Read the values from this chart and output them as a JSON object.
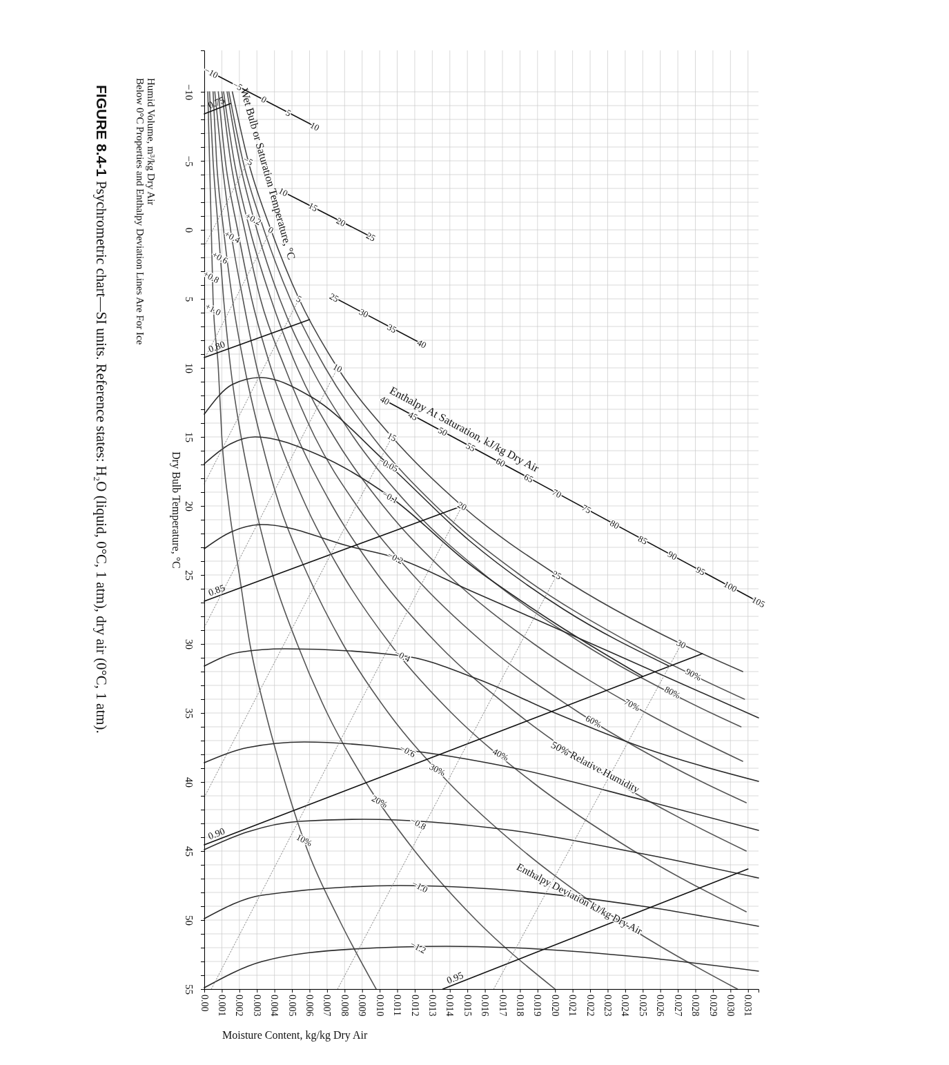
{
  "chart_data": {
    "type": "line",
    "title": "FIGURE 8.4-1",
    "subtitle": "Psychrometric chart—SI units. Reference states: H₂O (liquid, 0°C, 1 atm), dry air (0°C, 1 atm).",
    "xlabel": "Moisture Content, kg/kg Dry Air",
    "ylabel": "Dry Bulb Temperature, °C",
    "xlim": [
      0,
      0.0316
    ],
    "ylim": [
      55,
      -13
    ],
    "xticks": [
      {
        "value": 0,
        "label": "0.00"
      },
      0.001,
      0.002,
      0.003,
      0.004,
      0.005,
      0.006,
      0.007,
      0.008,
      0.009,
      {
        "value": 0.01,
        "label": "0.010"
      },
      0.011,
      0.012,
      0.013,
      0.014,
      0.015,
      0.016,
      0.017,
      0.018,
      0.019,
      {
        "value": 0.02,
        "label": "0.020"
      },
      0.021,
      0.022,
      0.023,
      0.024,
      0.025,
      0.026,
      0.027,
      0.028,
      0.029,
      {
        "value": 0.03,
        "label": "0.030"
      },
      0.031
    ],
    "yticks": [
      {
        "value": -10,
        "label": "−10"
      },
      {
        "value": -9,
        "label": null
      },
      {
        "value": -8,
        "label": null
      },
      {
        "value": -7,
        "label": null
      },
      {
        "value": -6,
        "label": null
      },
      {
        "value": -5,
        "label": "−5"
      },
      {
        "value": -4,
        "label": null
      },
      {
        "value": -3,
        "label": null
      },
      {
        "value": -2,
        "label": null
      },
      {
        "value": -1,
        "label": null
      },
      0,
      {
        "value": 1,
        "label": null
      },
      {
        "value": 2,
        "label": null
      },
      {
        "value": 3,
        "label": null
      },
      {
        "value": 4,
        "label": null
      },
      5,
      {
        "value": 6,
        "label": null
      },
      {
        "value": 7,
        "label": null
      },
      {
        "value": 8,
        "label": null
      },
      {
        "value": 9,
        "label": null
      },
      10,
      {
        "value": 11,
        "label": null
      },
      {
        "value": 12,
        "label": null
      },
      {
        "value": 13,
        "label": null
      },
      {
        "value": 14,
        "label": null
      },
      15,
      {
        "value": 16,
        "label": null
      },
      {
        "value": 17,
        "label": null
      },
      {
        "value": 18,
        "label": null
      },
      {
        "value": 19,
        "label": null
      },
      20,
      {
        "value": 21,
        "label": null
      },
      {
        "value": 22,
        "label": null
      },
      {
        "value": 23,
        "label": null
      },
      {
        "value": 24,
        "label": null
      },
      25,
      {
        "value": 26,
        "label": null
      },
      {
        "value": 27,
        "label": null
      },
      {
        "value": 28,
        "label": null
      },
      {
        "value": 29,
        "label": null
      },
      30,
      {
        "value": 31,
        "label": null
      },
      {
        "value": 32,
        "label": null
      },
      {
        "value": 33,
        "label": null
      },
      {
        "value": 34,
        "label": null
      },
      35,
      {
        "value": 36,
        "label": null
      },
      {
        "value": 37,
        "label": null
      },
      {
        "value": 38,
        "label": null
      },
      {
        "value": 39,
        "label": null
      },
      40,
      {
        "value": 41,
        "label": null
      },
      {
        "value": 42,
        "label": null
      },
      {
        "value": 43,
        "label": null
      },
      {
        "value": 44,
        "label": null
      },
      45,
      {
        "value": 46,
        "label": null
      },
      {
        "value": 47,
        "label": null
      },
      {
        "value": 48,
        "label": null
      },
      {
        "value": 49,
        "label": null
      },
      50,
      {
        "value": 51,
        "label": null
      },
      {
        "value": 52,
        "label": null
      },
      {
        "value": 53,
        "label": null
      },
      {
        "value": 54,
        "label": null
      },
      55
    ],
    "grid": true,
    "series": [
      {
        "type": "line",
        "name": "Wet Bulb or Saturation Temperature, °C",
        "color": "#444444",
        "line_style": "solid",
        "x": [
          0.0016,
          0.0025,
          0.0038,
          0.0054,
          0.0076,
          0.0107,
          0.0147,
          0.0201,
          0.0272,
          0.0307
        ],
        "values": [
          -10,
          -5,
          0,
          5,
          10,
          15,
          20,
          25,
          30,
          32
        ]
      },
      {
        "color": "#555555",
        "line_style": "solid",
        "x": [
          0.0014,
          0.0022,
          0.0034,
          0.0049,
          0.0069,
          0.0096,
          0.0132,
          0.018,
          0.0244,
          0.0308
        ],
        "values": [
          -10,
          -5,
          0,
          5,
          10,
          15,
          20,
          25,
          30,
          34
        ]
      },
      {
        "color": "#555555",
        "line_style": "solid",
        "x": [
          0.0013,
          0.002,
          0.003,
          0.0043,
          0.0061,
          0.0085,
          0.0117,
          0.016,
          0.0216,
          0.0289,
          0.0306
        ],
        "values": [
          -10,
          -5,
          0,
          5,
          10,
          15,
          20,
          25,
          30,
          35,
          36
        ]
      },
      {
        "color": "#555555",
        "line_style": "solid",
        "x": [
          0.0011,
          0.0017,
          0.0026,
          0.0038,
          0.0053,
          0.0074,
          0.0102,
          0.0139,
          0.0188,
          0.0252,
          0.0307
        ],
        "values": [
          -10,
          -5,
          0,
          5,
          10,
          15,
          20,
          25,
          30,
          35,
          38.5
        ]
      },
      {
        "color": "#555555",
        "line_style": "solid",
        "x": [
          0.001,
          0.0015,
          0.0023,
          0.0032,
          0.0046,
          0.0063,
          0.0087,
          0.0119,
          0.016,
          0.0214,
          0.0284,
          0.0309
        ],
        "values": [
          -10,
          -5,
          0,
          5,
          10,
          15,
          20,
          25,
          30,
          35,
          40,
          41.5
        ]
      },
      {
        "color": "#555555",
        "line_style": "solid",
        "x": [
          0.0008,
          0.0012,
          0.0019,
          0.0027,
          0.0038,
          0.0053,
          0.0073,
          0.0099,
          0.0133,
          0.0178,
          0.0235,
          0.0309
        ],
        "values": [
          -10,
          -5,
          0,
          5,
          10,
          15,
          20,
          25,
          30,
          35,
          40,
          45
        ]
      },
      {
        "color": "#555555",
        "line_style": "solid",
        "x": [
          0.0006,
          0.001,
          0.0015,
          0.0022,
          0.003,
          0.0042,
          0.0058,
          0.0079,
          0.0106,
          0.0141,
          0.0187,
          0.0245,
          0.0309
        ],
        "values": [
          -10,
          -5,
          0,
          5,
          10,
          15,
          20,
          25,
          30,
          35,
          40,
          45,
          49.4
        ]
      },
      {
        "color": "#555555",
        "line_style": "solid",
        "x": [
          0.0005,
          0.0007,
          0.0011,
          0.0016,
          0.0023,
          0.0032,
          0.0043,
          0.0059,
          0.0079,
          0.0105,
          0.0139,
          0.0182,
          0.0236,
          0.0304
        ],
        "values": [
          -10,
          -5,
          0,
          5,
          10,
          15,
          20,
          25,
          30,
          35,
          40,
          45,
          50,
          55
        ]
      },
      {
        "color": "#555555",
        "line_style": "solid",
        "x": [
          0.0003,
          0.0005,
          0.0008,
          0.0011,
          0.0015,
          0.0021,
          0.0029,
          0.0039,
          0.0053,
          0.007,
          0.0092,
          0.012,
          0.0155,
          0.02
        ],
        "values": [
          -10,
          -5,
          0,
          5,
          10,
          15,
          20,
          25,
          30,
          35,
          40,
          45,
          50,
          55
        ]
      },
      {
        "color": "#555555",
        "line_style": "solid",
        "x": [
          0.0002,
          0.0003,
          0.0004,
          0.0005,
          0.0008,
          0.001,
          0.0014,
          0.002,
          0.0026,
          0.0035,
          0.0046,
          0.0059,
          0.0077,
          0.0098
        ],
        "values": [
          -10,
          -5,
          0,
          5,
          10,
          15,
          20,
          25,
          30,
          35,
          40,
          45,
          50,
          55
        ]
      },
      {
        "color": "#2b2b2b",
        "line_style": "solid",
        "x": [
          0,
          0.0016,
          0.0032,
          0.0061,
          0.0105,
          0.0151,
          0.0205,
          0.0265
        ],
        "values": [
          13.35,
          11.2,
          10.7,
          12.1,
          17.0,
          22.5,
          27.5,
          31.6
        ]
      },
      {
        "color": "#2b2b2b",
        "line_style": "solid",
        "x": [
          0,
          0.0015,
          0.0029,
          0.0065,
          0.0106,
          0.0151,
          0.02,
          0.025
        ],
        "values": [
          16.95,
          15.5,
          15.0,
          16.3,
          19.35,
          24.2,
          28.5,
          32.35
        ]
      },
      {
        "color": "#2b2b2b",
        "line_style": "solid",
        "x": [
          0,
          0.0015,
          0.0033,
          0.0085,
          0.0109,
          0.0151,
          0.023,
          0.0316
        ],
        "values": [
          23.1,
          21.9,
          21.35,
          23.0,
          23.75,
          26.1,
          30.5,
          35.35
        ]
      },
      {
        "color": "#2b2b2b",
        "line_style": "solid",
        "x": [
          0,
          0.002,
          0.0046,
          0.0113,
          0.0155,
          0.02,
          0.025,
          0.0316
        ],
        "values": [
          31.6,
          30.6,
          30.35,
          30.85,
          32.5,
          35.0,
          37.5,
          39.95
        ]
      },
      {
        "color": "#2b2b2b",
        "line_style": "solid",
        "x": [
          0,
          0.0025,
          0.0057,
          0.0125,
          0.0175,
          0.025,
          0.0316
        ],
        "values": [
          38.6,
          37.5,
          37.1,
          37.85,
          38.95,
          41.3,
          43.5
        ]
      },
      {
        "color": "#2b2b2b",
        "line_style": "solid",
        "x": [
          0,
          0.0025,
          0.0054,
          0.0091,
          0.0175,
          0.025,
          0.0316
        ],
        "values": [
          44.9,
          43.6,
          42.85,
          42.7,
          43.5,
          45.2,
          46.95
        ]
      },
      {
        "color": "#2b2b2b",
        "line_style": "solid",
        "x": [
          0,
          0.0033,
          0.0112,
          0.0175,
          0.025,
          0.0316
        ],
        "values": [
          49.9,
          48.2,
          47.5,
          47.85,
          49.0,
          50.45
        ]
      },
      {
        "color": "#2b2b2b",
        "line_style": "solid",
        "x": [
          0,
          0.0033,
          0.0085,
          0.0138,
          0.0175,
          0.025,
          0.0316
        ],
        "values": [
          54.9,
          53.0,
          52.1,
          51.9,
          52.0,
          52.7,
          53.7
        ]
      },
      {
        "type": "line",
        "name": "0.75",
        "color": "#111111",
        "line_style": "solid",
        "x": [
          0,
          0.0015
        ],
        "values": [
          -8.4,
          -9.15
        ]
      },
      {
        "type": "line",
        "name": "0.80",
        "color": "#111111",
        "line_style": "solid",
        "x": [
          0,
          0.006
        ],
        "values": [
          9.25,
          6.5
        ]
      },
      {
        "type": "line",
        "name": "0.85",
        "color": "#111111",
        "line_style": "solid",
        "x": [
          0,
          0.0147
        ],
        "values": [
          26.9,
          20.0
        ]
      },
      {
        "type": "line",
        "name": "0.90",
        "color": "#111111",
        "line_style": "solid",
        "x": [
          0,
          0.0284
        ],
        "values": [
          44.55,
          30.7
        ]
      },
      {
        "type": "line",
        "name": "0.95",
        "color": "#111111",
        "line_style": "solid",
        "x": [
          0.0136,
          0.031
        ],
        "values": [
          55,
          46.3
        ]
      },
      {
        "color": "#888888",
        "line_style": "dotted",
        "x": [
          0,
          0.0025
        ],
        "values": [
          1.2,
          -5
        ]
      },
      {
        "color": "#888888",
        "line_style": "dotted",
        "x": [
          0,
          0.0038
        ],
        "values": [
          9.37,
          0
        ]
      },
      {
        "color": "#888888",
        "line_style": "dotted",
        "x": [
          0,
          0.0054
        ],
        "values": [
          18.4,
          5
        ]
      },
      {
        "color": "#888888",
        "line_style": "dotted",
        "x": [
          0,
          0.0076
        ],
        "values": [
          28.8,
          10
        ]
      },
      {
        "color": "#888888",
        "line_style": "dotted",
        "x": [
          0,
          0.0107
        ],
        "values": [
          41.1,
          15
        ]
      },
      {
        "color": "#888888",
        "line_style": "dotted",
        "x": [
          0.0004,
          0.0147
        ],
        "values": [
          55,
          20
        ]
      },
      {
        "color": "#888888",
        "line_style": "dotted",
        "x": [
          0.0076,
          0.0201
        ],
        "values": [
          55,
          25
        ]
      },
      {
        "color": "#888888",
        "line_style": "dotted",
        "x": [
          0.0165,
          0.0272
        ],
        "values": [
          55,
          30
        ]
      },
      {
        "color": "#111111",
        "line_style": "solid",
        "x": [
          0.0004,
          0.0063
        ],
        "values": [
          -11.4,
          -7.5
        ]
      },
      {
        "color": "#111111",
        "line_style": "solid",
        "x": [
          0.0045,
          0.0095
        ],
        "values": [
          -2.75,
          0.5
        ]
      },
      {
        "color": "#111111",
        "line_style": "solid",
        "x": [
          0.0074,
          0.0124
        ],
        "values": [
          4.9,
          8.25
        ]
      },
      {
        "type": "line",
        "name": "Enthalpy At Saturation, kJ/kg Dry Air",
        "color": "#111111",
        "line_style": "solid",
        "x": [
          0.0103,
          0.0316
        ],
        "values": [
          12.35,
          26.95
        ]
      }
    ],
    "annotations": [
      {
        "text": "−10",
        "x": 0.0004,
        "y": -11.4
      },
      {
        "text": "−5",
        "x": 0.0019,
        "y": -10.43
      },
      {
        "text": "0",
        "x": 0.0034,
        "y": -9.45
      },
      {
        "text": "5",
        "x": 0.0048,
        "y": -8.48
      },
      {
        "text": "10",
        "x": 0.0063,
        "y": -7.5
      },
      {
        "text": "10",
        "x": 0.0045,
        "y": -2.75
      },
      {
        "text": "15",
        "x": 0.0062,
        "y": -1.67
      },
      {
        "text": "20",
        "x": 0.0078,
        "y": -0.58
      },
      {
        "text": "25",
        "x": 0.0095,
        "y": 0.5
      },
      {
        "text": "25",
        "x": 0.0074,
        "y": 4.9
      },
      {
        "text": "30",
        "x": 0.0091,
        "y": 6.02
      },
      {
        "text": "35",
        "x": 0.0107,
        "y": 7.13
      },
      {
        "text": "40",
        "x": 0.0124,
        "y": 8.25
      },
      {
        "text": "40",
        "x": 0.0103,
        "y": 12.35
      },
      {
        "text": "45",
        "x": 0.0119,
        "y": 13.47
      },
      {
        "text": "50",
        "x": 0.0136,
        "y": 14.6
      },
      {
        "text": "55",
        "x": 0.0152,
        "y": 15.72
      },
      {
        "text": "60",
        "x": 0.0169,
        "y": 16.84
      },
      {
        "text": "65",
        "x": 0.0185,
        "y": 17.97
      },
      {
        "text": "70",
        "x": 0.0201,
        "y": 19.09
      },
      {
        "text": "75",
        "x": 0.0218,
        "y": 20.21
      },
      {
        "text": "80",
        "x": 0.0234,
        "y": 21.33
      },
      {
        "text": "85",
        "x": 0.025,
        "y": 22.46
      },
      {
        "text": "90",
        "x": 0.0267,
        "y": 23.58
      },
      {
        "text": "95",
        "x": 0.0283,
        "y": 24.7
      },
      {
        "text": "100",
        "x": 0.03,
        "y": 25.83
      },
      {
        "text": "105",
        "x": 0.0316,
        "y": 26.95
      },
      {
        "text": "−5",
        "x": 0.0025,
        "y": -5
      },
      {
        "text": "0",
        "x": 0.0038,
        "y": 0
      },
      {
        "text": "5",
        "x": 0.0054,
        "y": 5
      },
      {
        "text": "10",
        "x": 0.0076,
        "y": 10
      },
      {
        "text": "15",
        "x": 0.0107,
        "y": 15
      },
      {
        "text": "20",
        "x": 0.0147,
        "y": 20
      },
      {
        "text": "25",
        "x": 0.0201,
        "y": 25
      },
      {
        "text": "30",
        "x": 0.0272,
        "y": 30
      },
      {
        "text": "90%",
        "x": 0.0279,
        "y": 32.2
      },
      {
        "text": "80%",
        "x": 0.0267,
        "y": 33.5
      },
      {
        "text": "70%",
        "x": 0.0244,
        "y": 34.4
      },
      {
        "text": "60%",
        "x": 0.0222,
        "y": 35.6
      },
      {
        "text": "50% Relative Humidity",
        "x": 0.0223,
        "y": 38.9
      },
      {
        "text": "40%",
        "x": 0.0169,
        "y": 38.0
      },
      {
        "text": "30%",
        "x": 0.0133,
        "y": 39.1
      },
      {
        "text": "20%",
        "x": 0.01,
        "y": 41.4
      },
      {
        "text": "10%",
        "x": 0.0057,
        "y": 44.2
      },
      {
        "text": "−0.05",
        "x": 0.0105,
        "y": 17.0
      },
      {
        "text": "−0.1",
        "x": 0.0106,
        "y": 19.35
      },
      {
        "text": "−0.2",
        "x": 0.0109,
        "y": 23.75
      },
      {
        "text": "−0.4",
        "x": 0.0113,
        "y": 30.85
      },
      {
        "text": "−0.6",
        "x": 0.0116,
        "y": 37.75
      },
      {
        "text": "−0.8",
        "x": 0.0122,
        "y": 43.0
      },
      {
        "text": "−1.0",
        "x": 0.0123,
        "y": 47.56
      },
      {
        "text": "−1.2",
        "x": 0.0122,
        "y": 51.96
      },
      {
        "text": "Enthalpy Deviation kJ/kg Dry Air",
        "x": 0.0214,
        "y": 48.45
      },
      {
        "text": "+0.2",
        "x": 0.0028,
        "y": -0.8
      },
      {
        "text": "+0.4",
        "x": 0.0016,
        "y": 0.5
      },
      {
        "text": "+0.6",
        "x": 0.0009,
        "y": 2.0
      },
      {
        "text": "+0.8",
        "x": 0.0004,
        "y": 3.4
      },
      {
        "text": "+1.0",
        "x": 0.0005,
        "y": 5.75
      },
      "Humid Volume, m³/kg Dry Air",
      "Below 0°C Properties and Enthalpy Deviation Lines Are For Ice"
    ]
  }
}
